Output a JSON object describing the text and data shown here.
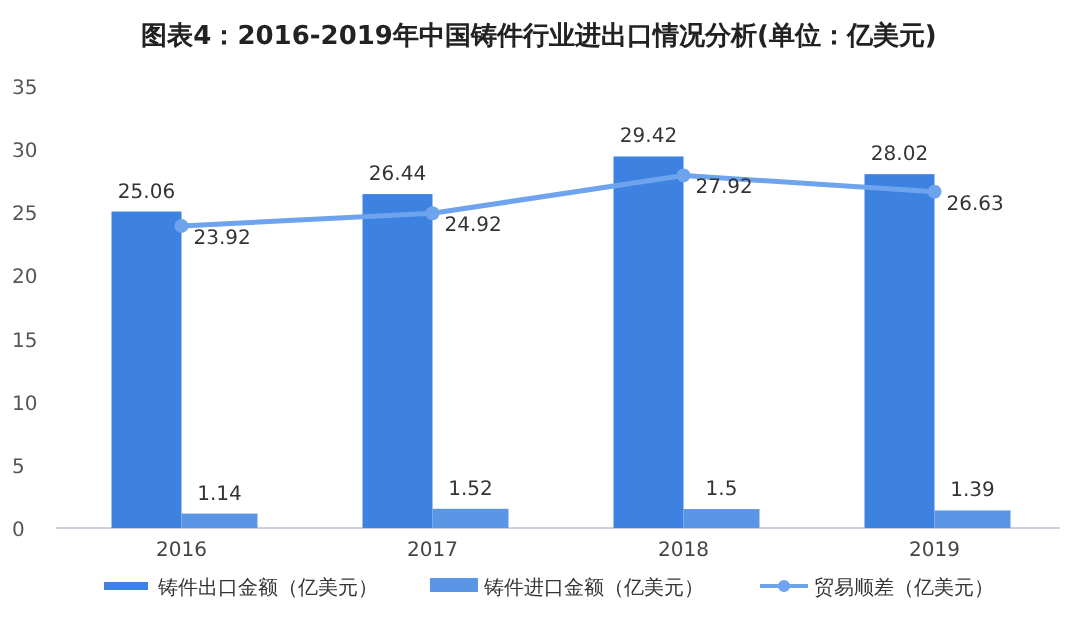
{
  "chart_data": {
    "type": "bar",
    "title": "图表4：2016-2019年中国铸件行业进出口情况分析(单位：亿美元)",
    "categories": [
      "2016",
      "2017",
      "2018",
      "2019"
    ],
    "series": [
      {
        "name": "铸件出口金额（亿美元）",
        "color": "#3d82e0",
        "values": [
          25.06,
          26.44,
          29.42,
          28.02
        ]
      },
      {
        "name": "铸件进口金额（亿美元）",
        "color": "#5b96e6",
        "values": [
          1.14,
          1.52,
          1.5,
          1.39
        ]
      },
      {
        "name": "贸易顺差（亿美元）",
        "type": "line",
        "marker": "circle",
        "color": "#6ea3ee",
        "values": [
          23.92,
          24.92,
          27.92,
          26.63
        ]
      }
    ],
    "ylim": [
      0,
      35
    ],
    "yticks": [
      0,
      5,
      10,
      15,
      20,
      25,
      30,
      35
    ],
    "data_labels": true,
    "legend": "bottom"
  }
}
